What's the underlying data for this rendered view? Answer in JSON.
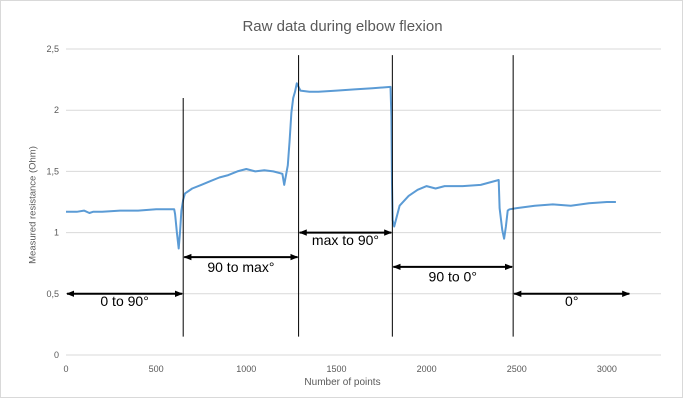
{
  "chart_data": {
    "type": "line",
    "title": "Raw data during elbow flexion",
    "xlabel": "Number of points",
    "ylabel": "Measured resistance (Ohm)",
    "xlim": [
      0,
      3300
    ],
    "ylim": [
      0,
      2.5
    ],
    "x_ticks": [
      0,
      500,
      1000,
      1500,
      2000,
      2500,
      3000
    ],
    "x_tick_labels": [
      "0",
      "500",
      "1000",
      "1500",
      "2000",
      "2500",
      "3000"
    ],
    "y_ticks": [
      0,
      0.5,
      1,
      1.5,
      2,
      2.5
    ],
    "y_tick_labels": [
      "0",
      "0,5",
      "1",
      "1,5",
      "2",
      "2,5"
    ],
    "grid": "horizontal",
    "legend": "none",
    "line_color": "#5b9bd5",
    "series": [
      {
        "x": [
          0,
          60,
          100,
          130,
          150,
          200,
          300,
          400,
          500,
          600,
          605,
          615,
          625,
          632,
          640,
          650,
          660,
          680,
          700,
          750,
          800,
          850,
          900,
          950,
          1000,
          1050,
          1100,
          1150,
          1200,
          1210,
          1230,
          1240,
          1250,
          1260,
          1270,
          1280,
          1300,
          1350,
          1400,
          1500,
          1600,
          1700,
          1800,
          1805,
          1808,
          1812,
          1820,
          1850,
          1900,
          1950,
          2000,
          2050,
          2100,
          2200,
          2300,
          2400,
          2405,
          2420,
          2430,
          2440,
          2450,
          2460,
          2500,
          2600,
          2700,
          2800,
          2900,
          3000,
          3050
        ],
        "y": [
          1.17,
          1.17,
          1.18,
          1.16,
          1.17,
          1.17,
          1.18,
          1.18,
          1.19,
          1.19,
          1.15,
          1.0,
          0.87,
          1.0,
          1.18,
          1.27,
          1.32,
          1.34,
          1.36,
          1.39,
          1.42,
          1.45,
          1.47,
          1.5,
          1.52,
          1.5,
          1.51,
          1.5,
          1.48,
          1.39,
          1.55,
          1.75,
          1.98,
          2.1,
          2.15,
          2.22,
          2.16,
          2.15,
          2.15,
          2.16,
          2.17,
          2.18,
          2.19,
          1.95,
          1.4,
          1.1,
          1.05,
          1.22,
          1.3,
          1.35,
          1.38,
          1.36,
          1.38,
          1.38,
          1.39,
          1.43,
          1.2,
          1.02,
          0.95,
          1.05,
          1.18,
          1.19,
          1.2,
          1.22,
          1.23,
          1.22,
          1.24,
          1.25,
          1.25
        ]
      }
    ],
    "annotations": [
      {
        "label": "0 to 90°",
        "from": 0,
        "to": 650,
        "y": 0.5,
        "label_y": 0.4,
        "vline_top": 2.1
      },
      {
        "label": "90 to max°",
        "from": 650,
        "to": 1290,
        "y": 0.8,
        "label_y": 0.68,
        "vline_top": 2.45
      },
      {
        "label": "max to 90°",
        "from": 1290,
        "to": 1810,
        "y": 1.0,
        "label_y": 0.9,
        "vline_top": 2.45
      },
      {
        "label": "90 to 0°",
        "from": 1810,
        "to": 2480,
        "y": 0.72,
        "label_y": 0.6,
        "vline_top": 2.45
      },
      {
        "label": "0°",
        "from": 2480,
        "to": 3130,
        "y": 0.5,
        "label_y": 0.4,
        "vline_top": null
      }
    ]
  }
}
